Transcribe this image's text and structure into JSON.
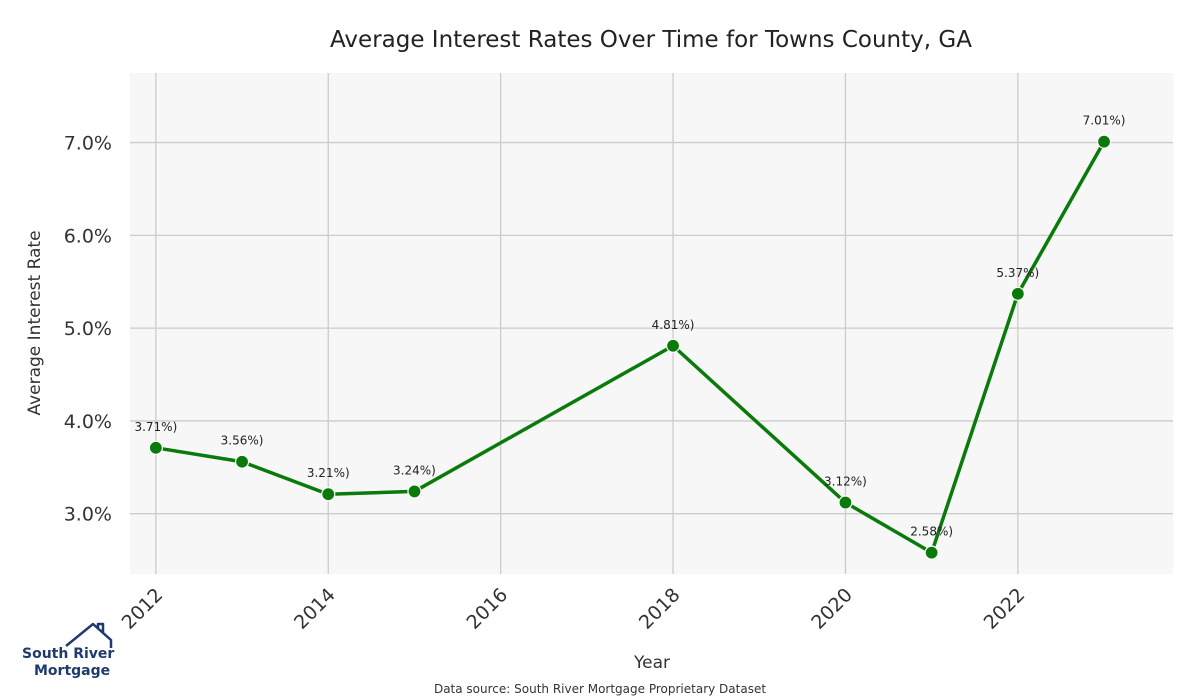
{
  "chart_data": {
    "type": "line",
    "title": "Average Interest Rates Over Time for Towns County, GA",
    "xlabel": "Year",
    "ylabel": "Average Interest Rate",
    "xlim": [
      2011.7,
      2023.8
    ],
    "ylim": [
      2.35,
      7.75
    ],
    "xticks": [
      2012,
      2014,
      2016,
      2018,
      2020,
      2022
    ],
    "xtick_labels": [
      "2012",
      "2014",
      "2016",
      "2018",
      "2020",
      "2022"
    ],
    "yticks": [
      3.0,
      4.0,
      5.0,
      6.0,
      7.0
    ],
    "ytick_labels": [
      "3.0%",
      "4.0%",
      "5.0%",
      "6.0%",
      "7.0%"
    ],
    "grid": true,
    "line_color": "#0a7a0a",
    "plot_background": "#f7f7f7",
    "grid_color": "#cccccc",
    "x": [
      2012,
      2013,
      2014,
      2015,
      2018,
      2020,
      2021,
      2022,
      2023
    ],
    "values": [
      3.71,
      3.56,
      3.21,
      3.24,
      4.81,
      3.12,
      2.58,
      5.37,
      7.01
    ],
    "data_labels": [
      "3.71%)",
      "3.56%)",
      "3.21%)",
      "3.24%)",
      "4.81%)",
      "3.12%)",
      "2.58%)",
      "5.37%)",
      "7.01%)"
    ]
  },
  "footer": {
    "source": "Data source: South River Mortgage Proprietary Dataset"
  },
  "logo": {
    "line1": "South River",
    "line2": "Mortgage",
    "color": "#1f3a6e"
  }
}
